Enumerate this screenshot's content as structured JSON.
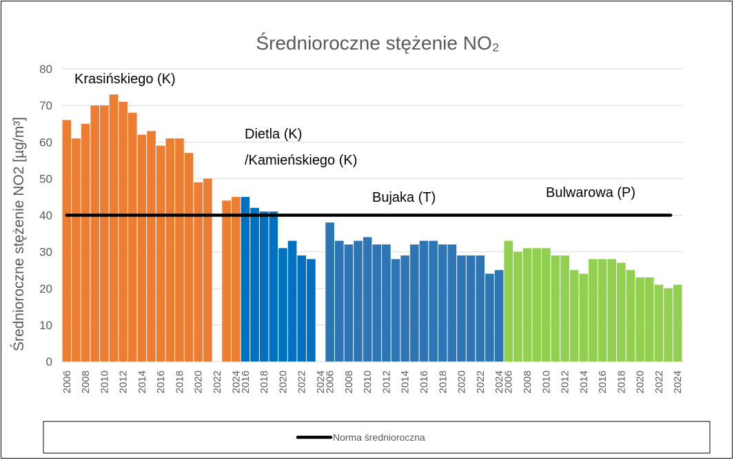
{
  "chart_data": {
    "type": "bar",
    "title": "Średnioroczne stężenie NO₂",
    "y_label": "Średnioroczne stężenie NO2 [µg/m³]",
    "categories": [
      "2006",
      null,
      "2008",
      null,
      "2010",
      null,
      "2012",
      null,
      "2014",
      null,
      "2016",
      null,
      "2018",
      null,
      "2020",
      null,
      "2022",
      null,
      "2024",
      "2016",
      null,
      "2018",
      null,
      "2020",
      null,
      "2022",
      null,
      "2024",
      "2006",
      null,
      "2008",
      null,
      "2010",
      null,
      "2012",
      null,
      "2014",
      null,
      "2016",
      null,
      "2018",
      null,
      "2020",
      null,
      "2022",
      null,
      "2024",
      "2006",
      null,
      "2008",
      null,
      "2010",
      null,
      "2012",
      null,
      "2014",
      null,
      "2016",
      null,
      "2018",
      null,
      "2020",
      null,
      "2022",
      null,
      "2024"
    ],
    "series": [
      {
        "name": "Krasińskiego (K)",
        "color": "#ed7d31",
        "values": [
          66,
          61,
          65,
          70,
          70,
          73,
          71,
          68,
          62,
          63,
          59,
          61,
          61,
          57,
          49,
          50,
          null,
          44,
          45,
          null,
          null,
          null,
          null,
          null,
          null,
          null,
          null,
          null,
          null,
          null,
          null,
          null,
          null,
          null,
          null,
          null,
          null,
          null,
          null,
          null,
          null,
          null,
          null,
          null,
          null,
          null,
          null,
          null,
          null,
          null,
          null,
          null,
          null,
          null,
          null,
          null,
          null,
          null,
          null,
          null,
          null,
          null,
          null,
          null,
          null,
          null
        ]
      },
      {
        "name": "Dietla (K)\n/Kamieńskiego (K)",
        "color": "#0070c0",
        "values": [
          null,
          null,
          null,
          null,
          null,
          null,
          null,
          null,
          null,
          null,
          null,
          null,
          null,
          null,
          null,
          null,
          null,
          null,
          null,
          45,
          42,
          41,
          41,
          31,
          33,
          29,
          28,
          null,
          null,
          null,
          null,
          null,
          null,
          null,
          null,
          null,
          null,
          null,
          null,
          null,
          null,
          null,
          null,
          null,
          null,
          null,
          null,
          null,
          null,
          null,
          null,
          null,
          null,
          null,
          null,
          null,
          null,
          null,
          null,
          null,
          null,
          null,
          null,
          null,
          null,
          null
        ]
      },
      {
        "name": "Bujaka (T)",
        "color": "#2e75b6",
        "values": [
          null,
          null,
          null,
          null,
          null,
          null,
          null,
          null,
          null,
          null,
          null,
          null,
          null,
          null,
          null,
          null,
          null,
          null,
          null,
          null,
          null,
          null,
          null,
          null,
          null,
          null,
          null,
          null,
          38,
          33,
          32,
          33,
          34,
          32,
          32,
          28,
          29,
          32,
          33,
          33,
          32,
          32,
          29,
          29,
          29,
          24,
          25,
          null,
          null,
          null,
          null,
          null,
          null,
          null,
          null,
          null,
          null,
          null,
          null,
          null,
          null,
          null,
          null,
          null,
          null,
          null
        ]
      },
      {
        "name": "Bulwarowa (P)",
        "color": "#92d050",
        "values": [
          null,
          null,
          null,
          null,
          null,
          null,
          null,
          null,
          null,
          null,
          null,
          null,
          null,
          null,
          null,
          null,
          null,
          null,
          null,
          null,
          null,
          null,
          null,
          null,
          null,
          null,
          null,
          null,
          null,
          null,
          null,
          null,
          null,
          null,
          null,
          null,
          null,
          null,
          null,
          null,
          null,
          null,
          null,
          null,
          null,
          null,
          null,
          33,
          30,
          31,
          31,
          31,
          29,
          29,
          25,
          24,
          28,
          28,
          28,
          27,
          25,
          23,
          23,
          21,
          20,
          21
        ]
      }
    ],
    "norm": {
      "name": "Norma średnioroczna",
      "value": 40,
      "color": "#000000"
    },
    "ylim": [
      0,
      80
    ],
    "yticks": [
      0,
      10,
      20,
      30,
      40,
      50,
      60,
      70,
      80
    ],
    "grid": true
  }
}
